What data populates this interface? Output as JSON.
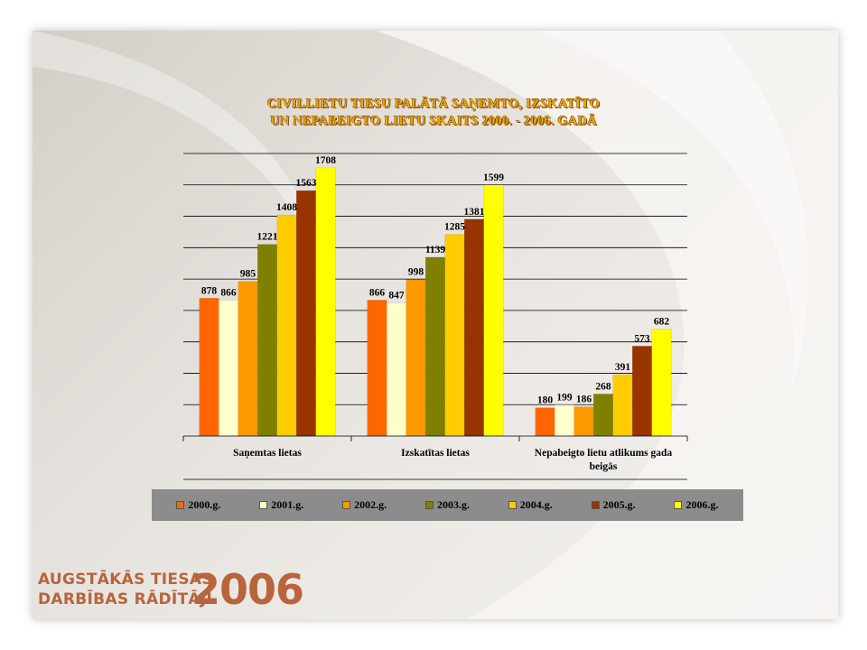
{
  "chart_data": {
    "type": "bar",
    "title_lines": [
      "CIVILLIETU TIESU PALĀTĀ SAŅEMTO, IZSKATĪTO",
      "UN NEPABEIGTO LIETU SKAITS 2000. - 2006. GADĀ"
    ],
    "categories": [
      "Saņemtas lietas",
      "Izskatītas lietas",
      "Nepabeigto lietu atlikums gada beigās"
    ],
    "category_lines": [
      [
        "Saņemtas lietas"
      ],
      [
        "Izskatītas lietas"
      ],
      [
        "Nepabeigto lietu atlikums gada",
        "beigās"
      ]
    ],
    "series": [
      {
        "name": "2000.g.",
        "color": "#ff6600",
        "values": [
          878,
          866,
          180
        ]
      },
      {
        "name": "2001.g.",
        "color": "#ffffcc",
        "values": [
          866,
          847,
          199
        ]
      },
      {
        "name": "2002.g.",
        "color": "#ff9900",
        "values": [
          985,
          998,
          186
        ]
      },
      {
        "name": "2003.g.",
        "color": "#808000",
        "values": [
          1221,
          1139,
          268
        ]
      },
      {
        "name": "2004.g.",
        "color": "#ffcc00",
        "values": [
          1408,
          1285,
          391
        ]
      },
      {
        "name": "2005.g.",
        "color": "#993300",
        "values": [
          1563,
          1381,
          573
        ]
      },
      {
        "name": "2006.g.",
        "color": "#ffff00",
        "values": [
          1708,
          1599,
          682
        ]
      }
    ],
    "ylim": [
      0,
      1800
    ],
    "grid": true,
    "data_labels": true,
    "legend_position": "bottom"
  },
  "brand": {
    "line1": "AUGSTĀKĀS TIESAS",
    "line2": "DARBĪBAS RĀDĪTĀJI",
    "year": "2006"
  }
}
